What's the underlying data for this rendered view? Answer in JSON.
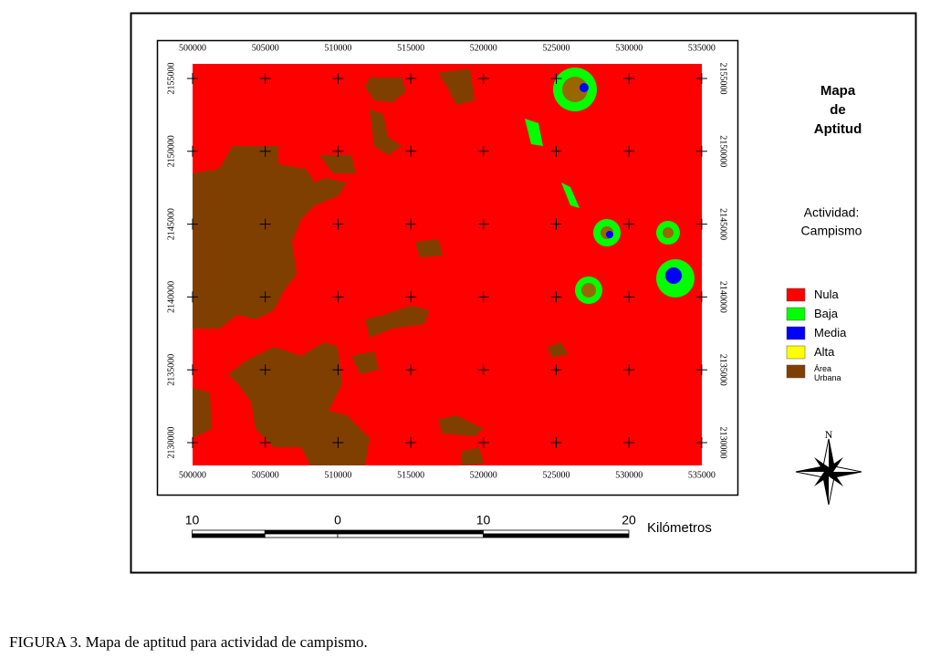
{
  "map": {
    "xticks": [
      500000,
      505000,
      510000,
      515000,
      520000,
      525000,
      530000,
      535000
    ],
    "yticks": [
      2130000,
      2135000,
      2140000,
      2145000,
      2150000,
      2155000
    ]
  },
  "title": [
    "Mapa",
    "de",
    "Aptitud"
  ],
  "activity": [
    "Actividad:",
    "Campismo"
  ],
  "legend": {
    "items": [
      {
        "label": "Nula",
        "color": "#ff0000"
      },
      {
        "label": "Baja",
        "color": "#00ff00"
      },
      {
        "label": "Media",
        "color": "#0000ff"
      },
      {
        "label": "Alta",
        "color": "#ffff00"
      },
      {
        "label": "Área Urbana",
        "color": "#7f3f00"
      }
    ]
  },
  "scale": {
    "ticks": [
      {
        "value": -10,
        "label": "10"
      },
      0,
      10,
      20
    ],
    "unit": "Kilómetros"
  },
  "compass": "N",
  "caption": "FIGURA 3. Mapa de aptitud para actividad de campismo."
}
